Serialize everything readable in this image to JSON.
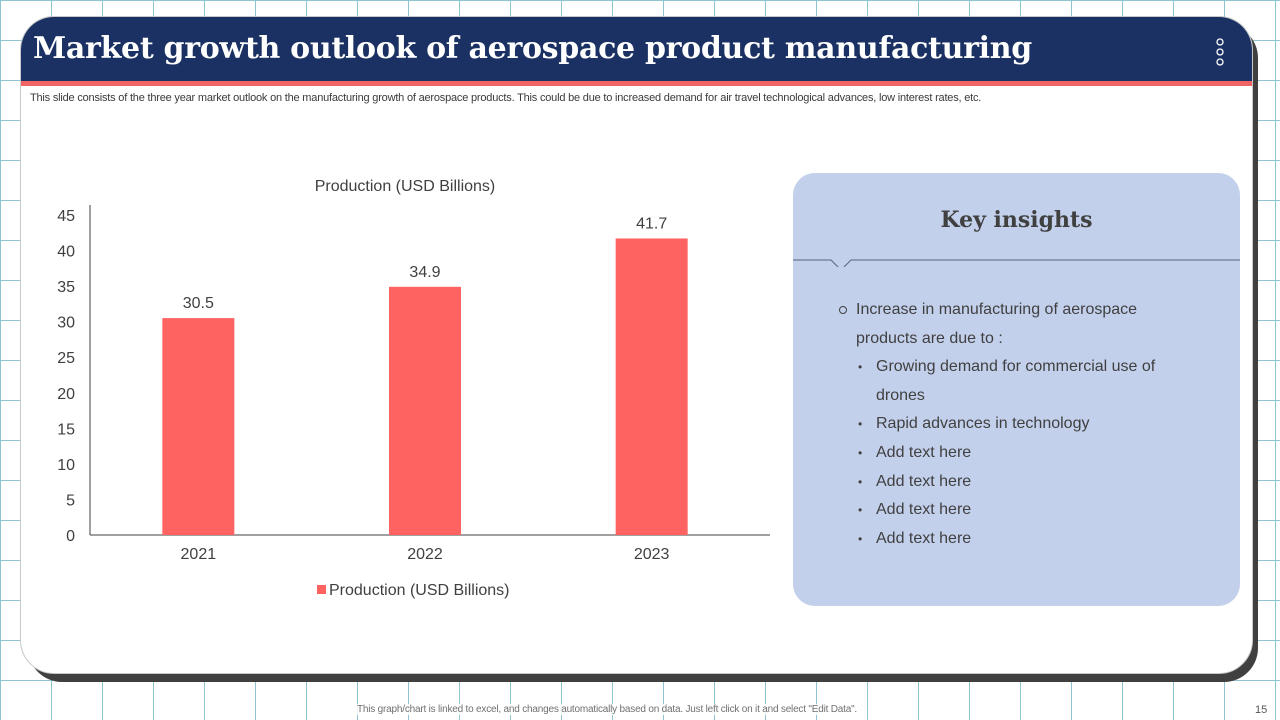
{
  "slide": {
    "title": "Market growth outlook of aerospace product  manufacturing",
    "subtitle": "This slide consists of the three year market outlook on the manufacturing growth of aerospace products. This could be due to increased demand for air travel technological advances, low interest rates, etc.",
    "footer_note": "This graph/chart is linked to excel, and changes automatically based on data. Just left click on it and select \"Edit Data\".",
    "page_number": "15",
    "menu_icon": "vertical-dots-icon"
  },
  "colors": {
    "header_bg": "#1b3163",
    "accent_red": "#f06466",
    "bar": "#ff6361",
    "insights_bg": "#c3d0ec"
  },
  "chart_data": {
    "type": "bar",
    "title": "Production (USD Billions)",
    "categories": [
      "2021",
      "2022",
      "2023"
    ],
    "series": [
      {
        "name": "Production (USD Billions)",
        "values": [
          30.5,
          34.9,
          41.7
        ]
      }
    ],
    "data_labels": [
      "30.5",
      "34.9",
      "41.7"
    ],
    "ylim": [
      0,
      45
    ],
    "yticks": [
      "0",
      "5",
      "10",
      "15",
      "20",
      "25",
      "30",
      "35",
      "40",
      "45"
    ],
    "legend": "bottom",
    "xlabel": "",
    "ylabel": "",
    "grid": false
  },
  "insights": {
    "title": "Key insights",
    "main_point": "Increase  in manufacturing  of aerospace products are due to :",
    "sub_points": [
      "Growing demand for commercial use of drones",
      "Rapid advances in technology",
      "Add text here",
      "Add text here",
      "Add text here",
      "Add text here"
    ]
  }
}
